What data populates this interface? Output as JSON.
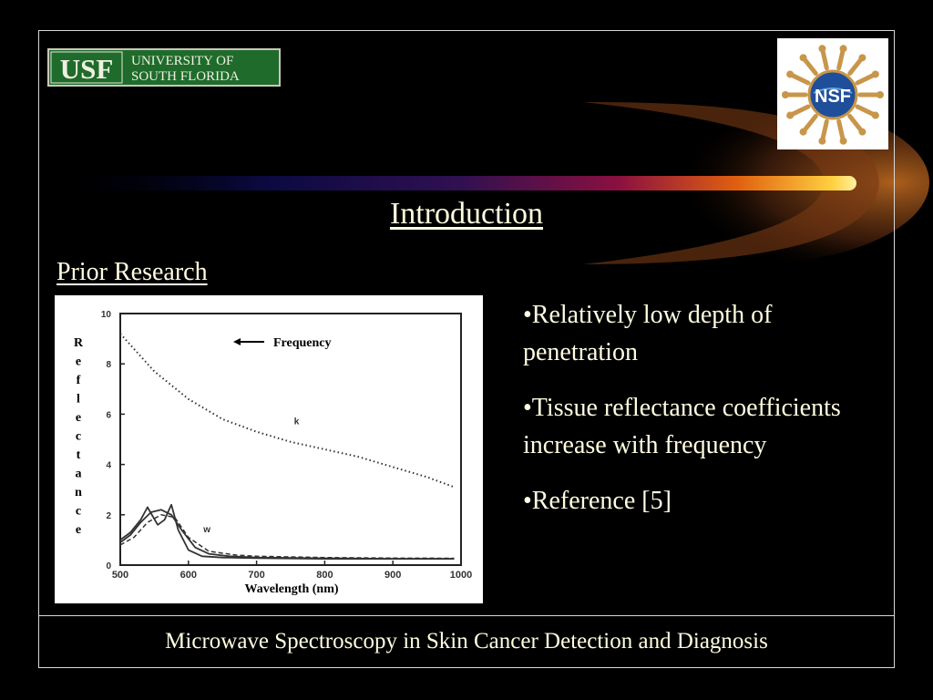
{
  "logos": {
    "usf_text_big": "USF",
    "usf_text_line1": "UNIVERSITY OF",
    "usf_text_line2": "SOUTH FLORIDA",
    "nsf_text": "NSF"
  },
  "slide": {
    "title": "Introduction",
    "subtitle": "Prior Research",
    "bullets": [
      "•Relatively low depth of penetration",
      "•Tissue reflectance coefficients increase with frequency",
      "•Reference [5]"
    ],
    "footer": "Microwave Spectroscopy in Skin Cancer Detection and Diagnosis"
  },
  "chart_data": {
    "type": "line",
    "xlabel": "Wavelength (nm)",
    "ylabel": "Reflectance",
    "arrow_label": "Frequency",
    "xlim": [
      500,
      1000
    ],
    "ylim": [
      0,
      10
    ],
    "xticks": [
      "500",
      "600",
      "700",
      "800",
      "900",
      "1000"
    ],
    "yticks": [
      "0",
      "2",
      "4",
      "6",
      "8",
      "10"
    ],
    "series": [
      {
        "name": "k",
        "style": "dotted",
        "x": [
          500,
          550,
          600,
          650,
          700,
          750,
          800,
          850,
          900,
          950,
          990
        ],
        "y": [
          9.2,
          7.7,
          6.6,
          5.8,
          5.3,
          4.9,
          4.6,
          4.3,
          3.9,
          3.5,
          3.1
        ]
      },
      {
        "name": "w",
        "style": "solid",
        "x": [
          500,
          515,
          530,
          540,
          555,
          565,
          575,
          585,
          600,
          620,
          650,
          700,
          800,
          900,
          990
        ],
        "y": [
          1.0,
          1.3,
          1.8,
          2.3,
          1.6,
          1.8,
          2.4,
          1.4,
          0.6,
          0.35,
          0.3,
          0.28,
          0.25,
          0.25,
          0.25
        ]
      },
      {
        "name": "",
        "style": "solid",
        "x": [
          500,
          515,
          530,
          545,
          560,
          575,
          590,
          610,
          630,
          660,
          700,
          800,
          900,
          990
        ],
        "y": [
          0.9,
          1.2,
          1.7,
          2.1,
          2.2,
          2.0,
          1.4,
          0.7,
          0.45,
          0.35,
          0.3,
          0.27,
          0.25,
          0.25
        ]
      },
      {
        "name": "",
        "style": "dashed",
        "x": [
          500,
          520,
          540,
          560,
          580,
          600,
          630,
          670,
          700,
          800,
          900,
          990
        ],
        "y": [
          0.8,
          1.1,
          1.7,
          2.0,
          1.9,
          1.1,
          0.55,
          0.4,
          0.35,
          0.3,
          0.28,
          0.27
        ]
      }
    ]
  }
}
